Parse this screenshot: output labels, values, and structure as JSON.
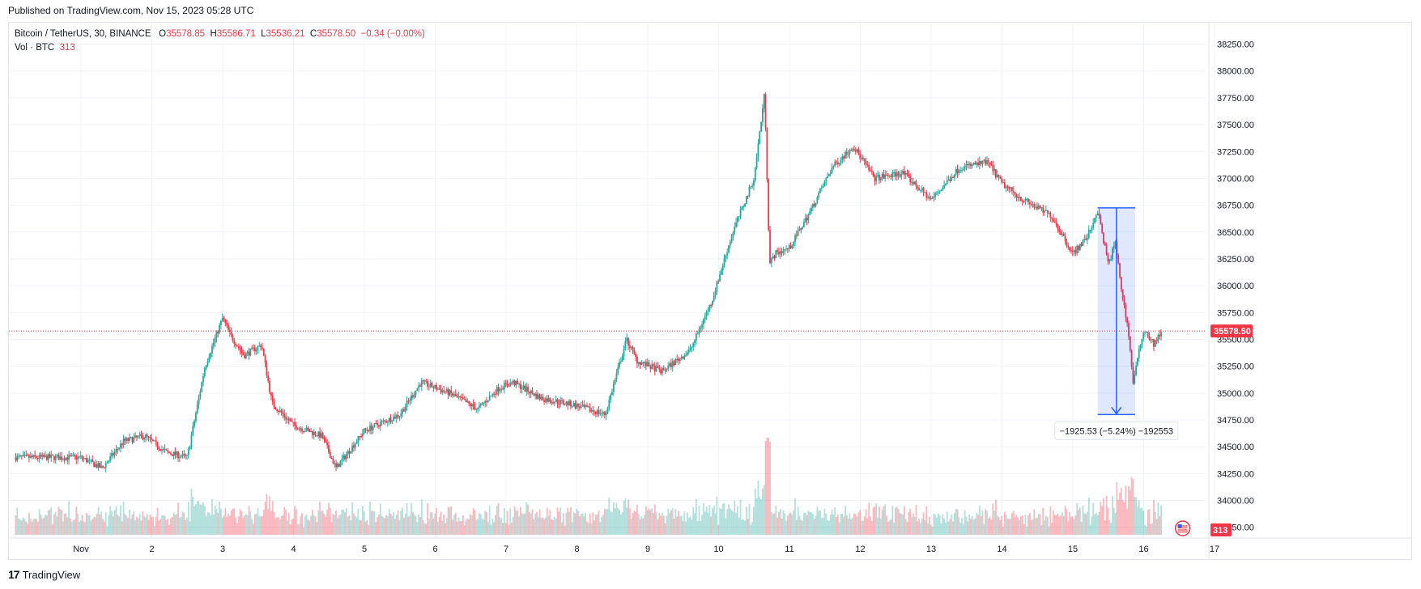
{
  "header": {
    "published": "Published on TradingView.com, Nov 15, 2023 05:28 UTC"
  },
  "legend": {
    "symbol": "Bitcoin / TetherUS, 30, BINANCE",
    "open_label": "O",
    "open": "35578.85",
    "high_label": "H",
    "high": "35586.71",
    "low_label": "L",
    "low": "35536.21",
    "close_label": "C",
    "close": "35578.50",
    "change": "−0.34 (−0.00%)",
    "volume_label": "Vol · BTC",
    "volume": "313"
  },
  "footer": {
    "brand": "TradingView"
  },
  "colors": {
    "up": "#26a69a",
    "down": "#f23645",
    "measure": "#2962ff",
    "grid": "#f0f3fa"
  },
  "chart_data": {
    "type": "candlestick",
    "title": "Bitcoin / TetherUS, 30, BINANCE",
    "x_ticks": [
      "Nov",
      "2",
      "3",
      "4",
      "5",
      "6",
      "7",
      "8",
      "9",
      "10",
      "11",
      "12",
      "13",
      "14",
      "15",
      "16",
      "17"
    ],
    "y_ticks": [
      "38250.00",
      "38000.00",
      "37750.00",
      "37500.00",
      "37250.00",
      "37000.00",
      "36750.00",
      "36500.00",
      "36250.00",
      "36000.00",
      "35750.00",
      "35500.00",
      "35250.00",
      "35000.00",
      "34750.00",
      "34500.00",
      "34250.00",
      "34000.00",
      "33750.00"
    ],
    "ylim": [
      33650,
      38450
    ],
    "last_price": "35578.50",
    "last_volume": "313",
    "price_path_days": [
      0,
      0.3,
      0.6,
      0.9,
      1.2,
      1.5,
      1.75,
      2.0,
      2.1,
      2.3,
      2.55,
      2.7,
      3.0,
      3.4,
      3.6,
      4.0,
      4.5,
      4.8,
      5.2,
      5.6,
      5.9,
      6.1,
      6.5,
      6.9,
      7.4,
      7.7,
      7.85,
      8.2,
      8.6,
      8.9,
      9.2,
      9.5,
      9.65,
      9.72,
      9.8,
      10.0,
      10.3,
      10.6,
      10.9,
      11.2,
      11.6,
      12.0,
      12.4,
      12.8,
      13.0,
      13.3,
      13.7,
      14.0,
      14.2,
      14.35,
      14.5,
      14.6,
      14.7,
      14.78,
      14.85,
      15.0,
      15.15,
      15.25
    ],
    "price_path_values": [
      34400,
      34300,
      34550,
      34600,
      34450,
      34400,
      35250,
      35700,
      35550,
      35350,
      35450,
      34900,
      34700,
      34600,
      34300,
      34650,
      34800,
      35100,
      35000,
      34850,
      35050,
      35100,
      34950,
      34900,
      34800,
      35500,
      35300,
      35200,
      35400,
      35850,
      36500,
      37000,
      37800,
      36200,
      36300,
      36350,
      36700,
      37100,
      37300,
      37000,
      37050,
      36800,
      37100,
      37150,
      36950,
      36800,
      36650,
      36300,
      36450,
      36700,
      36200,
      36400,
      35900,
      35600,
      35100,
      35600,
      35450,
      35578
    ],
    "measure": {
      "from_day": 14.35,
      "to_day": 14.88,
      "from_price": 36725,
      "to_price": 34800,
      "label": "−1925.53 (−5.24%) −192553"
    }
  }
}
